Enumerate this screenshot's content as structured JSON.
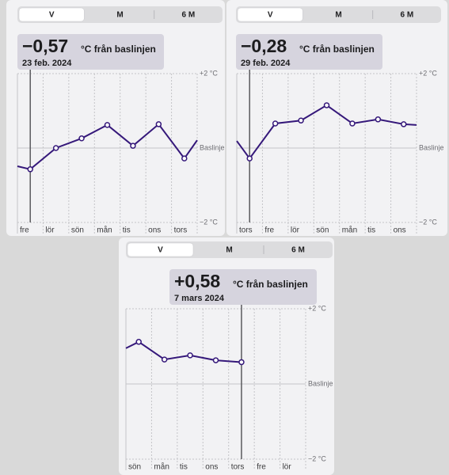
{
  "chart_data": [
    {
      "type": "line",
      "segments": [
        "V",
        "M",
        "6 M"
      ],
      "selected_segment": 0,
      "readout": {
        "value": -0.57,
        "label": "−0,57",
        "unit": "°C från baslinjen",
        "date": "23 feb. 2024"
      },
      "categories": [
        "fre",
        "lör",
        "sön",
        "mån",
        "tis",
        "ons",
        "tors"
      ],
      "xlim": [
        0,
        7
      ],
      "xticks": [
        0,
        1,
        2,
        3,
        4,
        5,
        6,
        7
      ],
      "selected_x": 0.5,
      "ylim": [
        -2,
        2
      ],
      "yticks": [
        {
          "value": 2,
          "label": "+2 °C"
        },
        {
          "value": 0,
          "label": "Baslinje"
        },
        {
          "value": -2,
          "label": "−2 °C"
        }
      ],
      "color": "#35187a",
      "x": [
        0,
        0.5,
        1.5,
        2.5,
        3.5,
        4.5,
        5.5,
        6.5,
        7
      ],
      "values": [
        -0.49,
        -0.57,
        0,
        0.26,
        0.62,
        0.06,
        0.64,
        -0.28,
        0.21
      ]
    },
    {
      "type": "line",
      "segments": [
        "V",
        "M",
        "6 M"
      ],
      "selected_segment": 0,
      "readout": {
        "value": -0.28,
        "label": "−0,28",
        "unit": "°C från baslinjen",
        "date": "29 feb. 2024"
      },
      "categories": [
        "tors",
        "fre",
        "lör",
        "sön",
        "mån",
        "tis",
        "ons"
      ],
      "xlim": [
        0,
        7
      ],
      "xticks": [
        0,
        1,
        2,
        3,
        4,
        5,
        6,
        7
      ],
      "selected_x": 0.5,
      "ylim": [
        -2,
        2
      ],
      "yticks": [
        {
          "value": 2,
          "label": "+2 °C"
        },
        {
          "value": 0,
          "label": "Baslinje"
        },
        {
          "value": -2,
          "label": "−2 °C"
        }
      ],
      "color": "#35187a",
      "x": [
        0,
        0.5,
        1.5,
        2.5,
        3.5,
        4.5,
        5.5,
        6.5,
        7
      ],
      "values": [
        0.19,
        -0.28,
        0.66,
        0.74,
        1.15,
        0.66,
        0.77,
        0.64,
        0.62
      ]
    },
    {
      "type": "line",
      "segments": [
        "V",
        "M",
        "6 M"
      ],
      "selected_segment": 0,
      "readout": {
        "value": 0.58,
        "label": "+0,58",
        "unit": "°C från baslinjen",
        "date": "7 mars 2024"
      },
      "categories": [
        "sön",
        "mån",
        "tis",
        "ons",
        "tors",
        "fre",
        "lör"
      ],
      "xlim": [
        0,
        7
      ],
      "xticks": [
        0,
        1,
        2,
        3,
        4,
        5,
        6,
        7
      ],
      "selected_x": 4.5,
      "ylim": [
        -2,
        2
      ],
      "yticks": [
        {
          "value": 2,
          "label": "+2 °C"
        },
        {
          "value": 0,
          "label": "Baslinje"
        },
        {
          "value": -2,
          "label": "−2 °C"
        }
      ],
      "color": "#35187a",
      "x": [
        0,
        0.5,
        1.5,
        2.5,
        3.5,
        4.5
      ],
      "values": [
        0.95,
        1.12,
        0.65,
        0.76,
        0.63,
        0.58
      ]
    }
  ]
}
